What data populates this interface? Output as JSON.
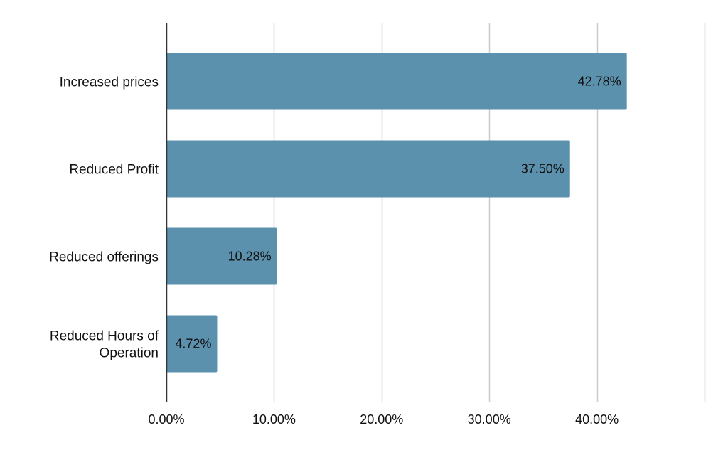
{
  "chart_data": {
    "type": "bar",
    "orientation": "horizontal",
    "title": "",
    "xlabel": "",
    "ylabel": "",
    "categories": [
      [
        "Increased prices"
      ],
      [
        "Reduced Profit"
      ],
      [
        "Reduced offerings"
      ],
      [
        "Reduced Hours of",
        "Operation"
      ]
    ],
    "values": [
      42.78,
      37.5,
      10.28,
      4.72
    ],
    "data_labels": [
      "42.78%",
      "37.50%",
      "10.28%",
      "4.72%"
    ],
    "xlim": [
      0,
      50
    ],
    "ticks": [
      0,
      10,
      20,
      30,
      40,
      50
    ],
    "tick_labels": [
      "0.00%",
      "10.00%",
      "20.00%",
      "30.00%",
      "40.00%",
      ""
    ],
    "bar_color": "#5b91ad",
    "grid": true,
    "grid_color": "#cccccc",
    "axis_color": "#333333",
    "legend": "none"
  }
}
